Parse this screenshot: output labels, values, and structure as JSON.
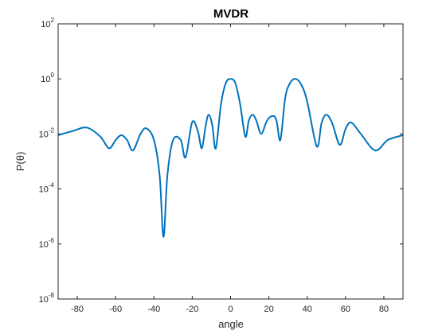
{
  "chart_data": {
    "type": "line",
    "title": "MVDR",
    "x_label": "angle",
    "y_label": "P(θ)",
    "log_y": true,
    "xlim": [
      -90,
      90
    ],
    "ylim": [
      1e-08,
      100
    ],
    "xticks": [
      -80,
      -60,
      -40,
      -20,
      0,
      20,
      40,
      60,
      80
    ],
    "yticks": [
      {
        "value": 1e-08,
        "label": "10^-8"
      },
      {
        "value": 1e-06,
        "label": "10^-6"
      },
      {
        "value": 0.0001,
        "label": "10^-4"
      },
      {
        "value": 0.01,
        "label": "10^-2"
      },
      {
        "value": 1,
        "label": "10^0"
      },
      {
        "value": 100,
        "label": "10^2"
      }
    ],
    "x": [
      -90,
      -82,
      -75,
      -68,
      -63.4,
      -60,
      -57,
      -54,
      -51,
      -47,
      -44,
      -40,
      -37,
      -35,
      -33,
      -30,
      -26,
      -23.5,
      -20,
      -17,
      -15,
      -13,
      -11.4,
      -9.5,
      -7.7,
      -5,
      -2.5,
      0,
      2.5,
      5,
      7.7,
      9.5,
      11.5,
      13.5,
      16,
      19,
      22,
      24,
      26,
      28.5,
      31,
      34,
      37,
      40,
      45,
      47.5,
      50,
      53,
      57,
      60,
      63,
      68,
      75.5,
      82,
      90
    ],
    "series": [
      {
        "name": "P",
        "color": "#0072bd",
        "values": [
          0.009,
          0.013,
          0.017,
          0.008,
          0.003,
          0.006,
          0.009,
          0.006,
          0.0025,
          0.01,
          0.016,
          0.006,
          0.0003,
          1.8e-06,
          0.0003,
          0.006,
          0.006,
          0.0014,
          0.027,
          0.012,
          0.003,
          0.02,
          0.05,
          0.02,
          0.003,
          0.12,
          0.7,
          1.0,
          0.7,
          0.12,
          0.008,
          0.03,
          0.05,
          0.03,
          0.01,
          0.03,
          0.045,
          0.03,
          0.006,
          0.2,
          0.7,
          1.0,
          0.6,
          0.15,
          0.0035,
          0.025,
          0.05,
          0.025,
          0.004,
          0.015,
          0.026,
          0.01,
          0.0025,
          0.006,
          0.009
        ]
      }
    ]
  }
}
